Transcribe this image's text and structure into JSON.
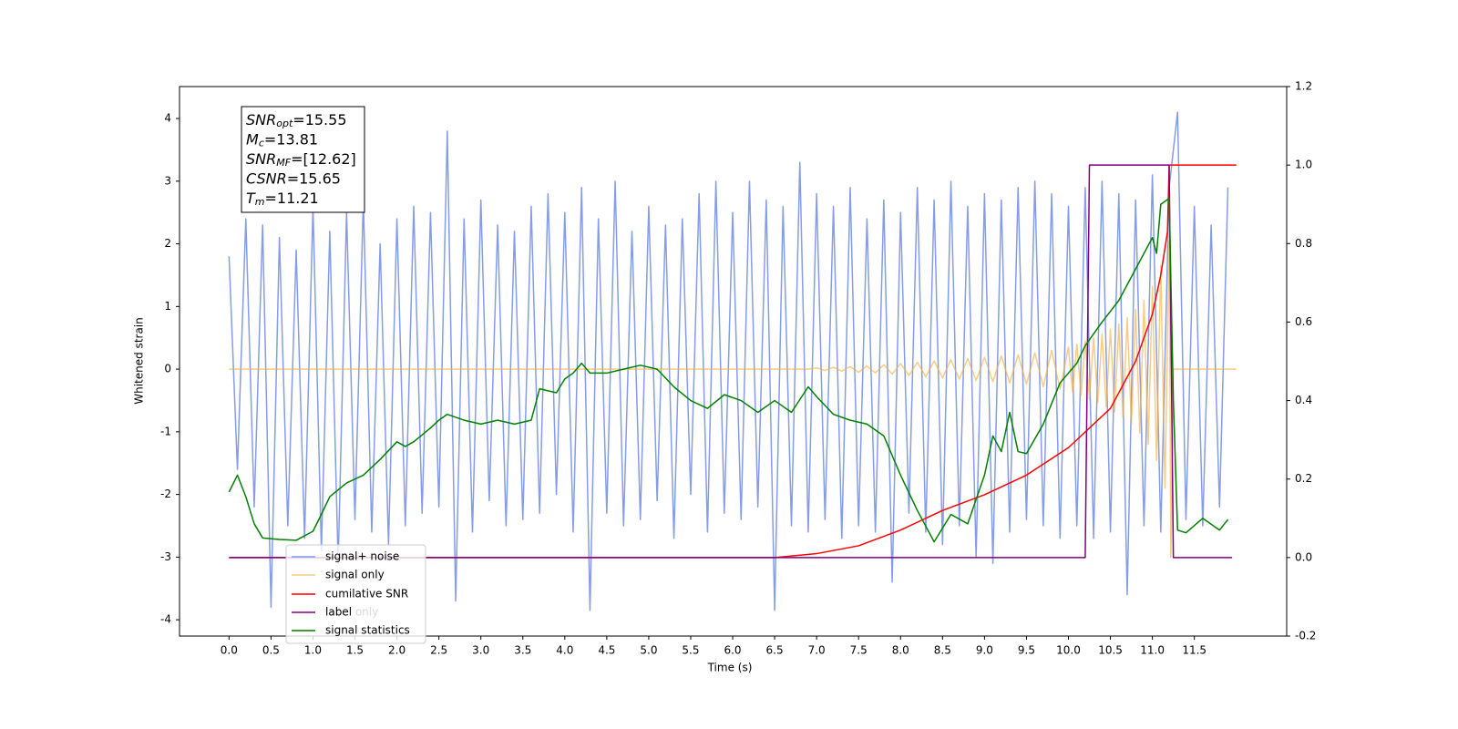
{
  "chart_data": {
    "type": "line",
    "xlabel": "Time (s)",
    "ylabel": "Whitened strain",
    "xlim": [
      -0.59,
      12.6
    ],
    "ylim": [
      -4.26,
      4.51
    ],
    "y2lim": [
      -0.2,
      1.2
    ],
    "xticks": [
      {
        "value": 0,
        "label": "0.0"
      },
      0.5,
      {
        "value": 1,
        "label": "1.0"
      },
      1.5,
      {
        "value": 2,
        "label": "2.0"
      },
      2.5,
      {
        "value": 3,
        "label": "3.0"
      },
      3.5,
      {
        "value": 4,
        "label": "4.0"
      },
      4.5,
      {
        "value": 5,
        "label": "5.0"
      },
      5.5,
      {
        "value": 6,
        "label": "6.0"
      },
      6.5,
      {
        "value": 7,
        "label": "7.0"
      },
      7.5,
      {
        "value": 8,
        "label": "8.0"
      },
      8.5,
      {
        "value": 9,
        "label": "9.0"
      },
      9.5,
      {
        "value": 10,
        "label": "10.0"
      },
      10.5,
      {
        "value": 11,
        "label": "11.0"
      },
      11.5
    ],
    "yticks": [
      -4,
      -3,
      -2,
      -1,
      0,
      1,
      2,
      3,
      4
    ],
    "y2ticks": [
      -0.2,
      {
        "value": 0,
        "label": "0.0"
      },
      0.2,
      0.4,
      0.6,
      0.8,
      {
        "value": 1,
        "label": "1.0"
      },
      1.2
    ],
    "grid": false,
    "legend": "lower left",
    "legend_hidden_entry": "label only",
    "annotations": [
      {
        "name": "SNR",
        "sub": "opt",
        "text": "=15.55"
      },
      {
        "name": "M",
        "sub": "c",
        "text": "=13.81"
      },
      {
        "name": "SNR",
        "sub": "MF",
        "text": "=[12.62]"
      },
      {
        "name": "CSNR",
        "text": "=15.65"
      },
      {
        "name": "T",
        "sub": "m",
        "text": "=11.21"
      }
    ],
    "series": [
      {
        "name": "signal+ noise",
        "color": "#7891e6",
        "axis": "y",
        "x": [
          0,
          0.1,
          0.2,
          0.3,
          0.4,
          0.5,
          0.6,
          0.7,
          0.8,
          0.9,
          1,
          1.1,
          1.2,
          1.3,
          1.4,
          1.5,
          1.6,
          1.7,
          1.8,
          1.9,
          2,
          2.1,
          2.2,
          2.3,
          2.4,
          2.5,
          2.6,
          2.7,
          2.8,
          2.9,
          3,
          3.1,
          3.2,
          3.3,
          3.4,
          3.5,
          3.6,
          3.7,
          3.8,
          3.9,
          4,
          4.1,
          4.2,
          4.3,
          4.4,
          4.5,
          4.6,
          4.7,
          4.8,
          4.9,
          5,
          5.1,
          5.2,
          5.3,
          5.4,
          5.5,
          5.6,
          5.7,
          5.8,
          5.9,
          6,
          6.1,
          6.2,
          6.3,
          6.4,
          6.5,
          6.6,
          6.7,
          6.8,
          6.9,
          7,
          7.1,
          7.2,
          7.3,
          7.4,
          7.5,
          7.6,
          7.7,
          7.8,
          7.9,
          8,
          8.1,
          8.2,
          8.3,
          8.4,
          8.5,
          8.6,
          8.7,
          8.8,
          8.9,
          9,
          9.1,
          9.2,
          9.3,
          9.4,
          9.5,
          9.6,
          9.7,
          9.8,
          9.9,
          10,
          10.1,
          10.2,
          10.3,
          10.4,
          10.5,
          10.6,
          10.7,
          10.8,
          10.9,
          11,
          11.1,
          11.2,
          11.3,
          11.4,
          11.5,
          11.6,
          11.7,
          11.8,
          11.9
        ],
        "values": [
          1.8,
          -1.6,
          2.4,
          -2.2,
          2.3,
          -3.8,
          2.1,
          -2.5,
          1.9,
          -2.7,
          2.6,
          -2.9,
          2.2,
          -3.1,
          2.5,
          -2.4,
          2.7,
          -2.6,
          2.0,
          -2.8,
          2.4,
          -2.5,
          2.6,
          -2.3,
          2.5,
          -2.2,
          3.8,
          -3.7,
          2.4,
          -2.6,
          2.7,
          -2.1,
          2.3,
          -2.5,
          2.2,
          -2.4,
          2.6,
          -2.3,
          2.8,
          -2.0,
          2.5,
          -2.6,
          2.9,
          -3.85,
          2.4,
          -2.3,
          3.0,
          -2.5,
          2.2,
          -2.4,
          2.6,
          -2.1,
          2.3,
          -2.7,
          2.4,
          -2.0,
          2.8,
          -2.6,
          3.0,
          -2.3,
          2.5,
          -2.4,
          3.0,
          -2.2,
          2.7,
          -3.85,
          2.6,
          -2.5,
          3.3,
          -2.6,
          2.8,
          -2.4,
          2.6,
          -2.7,
          2.9,
          -2.5,
          2.4,
          -2.6,
          2.7,
          -3.4,
          2.5,
          -2.3,
          2.9,
          -2.6,
          2.7,
          -2.8,
          3.0,
          -2.5,
          2.6,
          -3.0,
          2.8,
          -3.1,
          2.7,
          -2.6,
          2.9,
          -2.4,
          3.0,
          -2.5,
          2.8,
          -2.7,
          2.6,
          -2.5,
          2.9,
          -2.7,
          3.0,
          -2.6,
          2.8,
          -3.6,
          2.7,
          -2.5,
          3.1,
          -2.6,
          2.9,
          4.1,
          -2.4,
          2.6,
          -2.5,
          2.3,
          -2.2,
          2.9
        ]
      },
      {
        "name": "signal only",
        "color": "#f5b041",
        "axis": "y",
        "x": [
          0,
          6.9,
          7,
          7.1,
          7.2,
          7.3,
          7.4,
          7.5,
          7.6,
          7.7,
          7.8,
          7.9,
          8,
          8.1,
          8.2,
          8.3,
          8.4,
          8.5,
          8.6,
          8.7,
          8.8,
          8.9,
          9,
          9.1,
          9.2,
          9.3,
          9.4,
          9.5,
          9.6,
          9.7,
          9.8,
          9.9,
          10,
          10.05,
          10.1,
          10.15,
          10.2,
          10.25,
          10.3,
          10.35,
          10.4,
          10.45,
          10.5,
          10.55,
          10.6,
          10.65,
          10.7,
          10.75,
          10.8,
          10.85,
          10.9,
          10.95,
          11,
          11.05,
          11.1,
          11.15,
          11.2,
          11.22,
          11.25,
          12
        ],
        "values": [
          0,
          0,
          0.02,
          -0.02,
          0.03,
          -0.03,
          0.04,
          -0.05,
          0.05,
          -0.06,
          0.07,
          -0.08,
          0.09,
          -0.1,
          0.11,
          -0.12,
          0.13,
          -0.14,
          0.15,
          -0.16,
          0.17,
          -0.18,
          0.19,
          -0.2,
          0.21,
          -0.22,
          0.23,
          -0.24,
          0.26,
          -0.28,
          0.3,
          -0.32,
          0.35,
          -0.37,
          0.4,
          -0.42,
          0.45,
          -0.48,
          0.5,
          -0.53,
          0.56,
          -0.6,
          0.64,
          -0.68,
          0.72,
          -0.77,
          0.82,
          -0.88,
          0.95,
          -1.02,
          1.1,
          -1.2,
          1.32,
          -1.46,
          1.65,
          -1.9,
          2.05,
          -3.0,
          0,
          0
        ]
      },
      {
        "name": "cumilative SNR",
        "color": "#ff0000",
        "axis": "y2",
        "x": [
          0,
          6.5,
          7,
          7.5,
          8,
          8.5,
          9,
          9.5,
          10,
          10.5,
          10.8,
          11,
          11.1,
          11.18,
          11.2,
          12
        ],
        "values": [
          0,
          0,
          0.01,
          0.03,
          0.07,
          0.12,
          0.16,
          0.21,
          0.28,
          0.38,
          0.5,
          0.62,
          0.72,
          0.83,
          1,
          1
        ]
      },
      {
        "name": "label",
        "color": "#800080",
        "axis": "y2",
        "x": [
          0,
          10.2,
          10.25,
          11.2,
          11.25,
          11.95
        ],
        "values": [
          0,
          0,
          1,
          1,
          0,
          0
        ]
      },
      {
        "name": "signal statistics",
        "color": "#008000",
        "axis": "y2",
        "x": [
          0,
          0.1,
          0.2,
          0.3,
          0.4,
          0.6,
          0.8,
          1,
          1.1,
          1.2,
          1.4,
          1.6,
          1.8,
          2,
          2.1,
          2.2,
          2.4,
          2.5,
          2.6,
          2.8,
          3,
          3.2,
          3.4,
          3.6,
          3.7,
          3.9,
          4,
          4.1,
          4.2,
          4.3,
          4.5,
          4.7,
          4.9,
          5.1,
          5.3,
          5.5,
          5.7,
          5.9,
          6.1,
          6.3,
          6.5,
          6.7,
          6.9,
          7,
          7.2,
          7.4,
          7.6,
          7.8,
          8,
          8.2,
          8.4,
          8.6,
          8.8,
          9,
          9.1,
          9.2,
          9.3,
          9.4,
          9.5,
          9.7,
          9.9,
          10.1,
          10.2,
          10.4,
          10.6,
          10.8,
          11,
          11.05,
          11.1,
          11.2,
          11.25,
          11.3,
          11.4,
          11.6,
          11.8,
          11.9
        ],
        "values": [
          0.167,
          0.21,
          0.155,
          0.086,
          0.05,
          0.046,
          0.044,
          0.067,
          0.11,
          0.155,
          0.19,
          0.21,
          0.25,
          0.295,
          0.283,
          0.295,
          0.33,
          0.35,
          0.365,
          0.35,
          0.34,
          0.35,
          0.34,
          0.35,
          0.43,
          0.42,
          0.455,
          0.47,
          0.495,
          0.47,
          0.47,
          0.48,
          0.49,
          0.48,
          0.435,
          0.4,
          0.38,
          0.415,
          0.4,
          0.37,
          0.4,
          0.37,
          0.435,
          0.41,
          0.365,
          0.35,
          0.34,
          0.31,
          0.21,
          0.12,
          0.04,
          0.11,
          0.086,
          0.21,
          0.31,
          0.27,
          0.37,
          0.27,
          0.265,
          0.34,
          0.445,
          0.495,
          0.54,
          0.6,
          0.655,
          0.735,
          0.815,
          0.775,
          0.9,
          0.915,
          0.4,
          0.07,
          0.063,
          0.1,
          0.07,
          0.097
        ]
      }
    ]
  }
}
